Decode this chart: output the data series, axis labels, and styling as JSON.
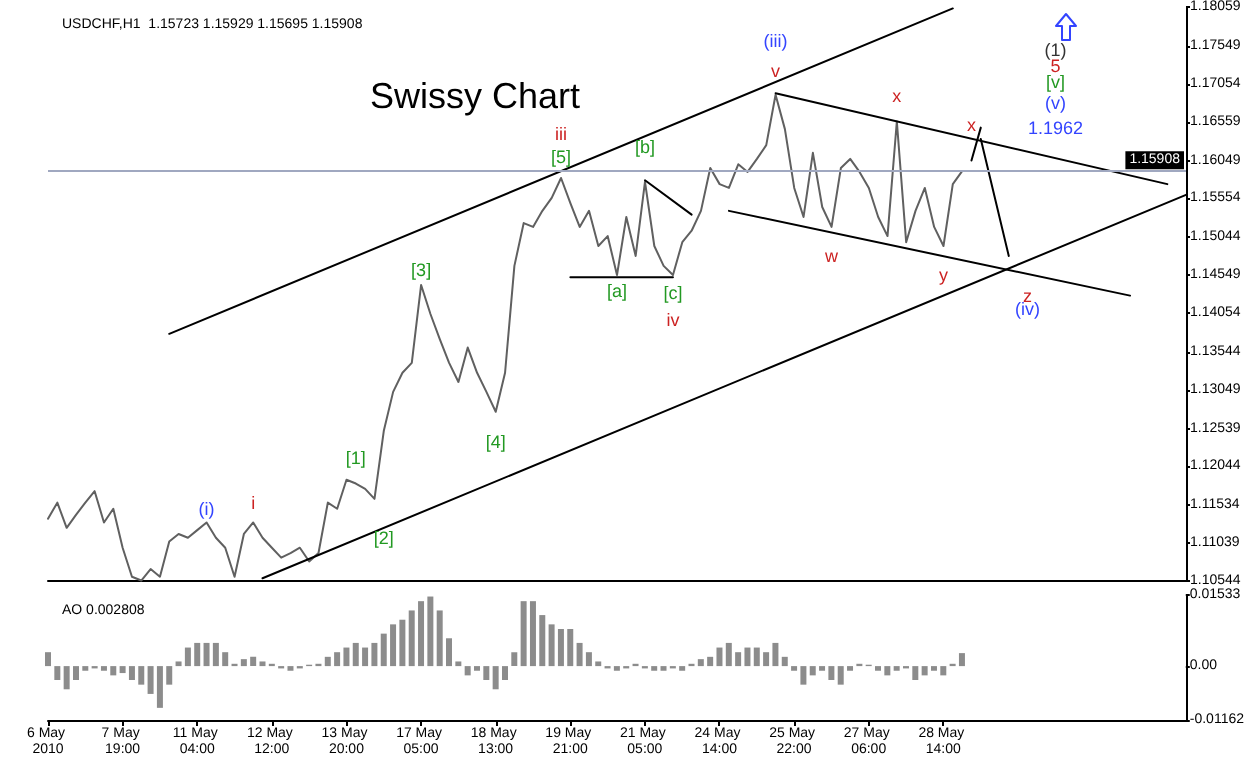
{
  "chart_data": [
    {
      "type": "line",
      "title": "Swissy Chart",
      "subtitle": "USDCHF,H1  1.15723 1.15929 1.15695 1.15908",
      "categories": [
        "6 May 2010",
        null,
        null,
        null,
        null,
        null,
        null,
        null,
        "7 May 19:00",
        null,
        null,
        null,
        null,
        null,
        null,
        null,
        "11 May 04:00",
        null,
        null,
        null,
        null,
        null,
        null,
        null,
        "12 May 12:00",
        null,
        null,
        null,
        null,
        null,
        null,
        null,
        "13 May 20:00",
        null,
        null,
        null,
        null,
        null,
        null,
        null,
        "17 May 05:00",
        null,
        null,
        null,
        null,
        null,
        null,
        null,
        "18 May 13:00",
        null,
        null,
        null,
        null,
        null,
        null,
        null,
        "19 May 21:00",
        null,
        null,
        null,
        null,
        null,
        null,
        null,
        "21 May 05:00",
        null,
        null,
        null,
        null,
        null,
        null,
        null,
        "24 May 14:00",
        null,
        null,
        null,
        null,
        null,
        null,
        null,
        "25 May 22:00",
        null,
        null,
        null,
        null,
        null,
        null,
        null,
        "27 May 06:00",
        null,
        null,
        null,
        null,
        null,
        null,
        null,
        "28 May 14:00",
        null,
        null,
        null,
        null,
        null,
        null,
        null,
        null,
        null,
        null,
        null,
        null,
        null,
        null,
        null,
        null,
        null,
        null,
        null,
        null,
        null,
        null,
        null,
        null,
        null,
        null
      ],
      "series": [
        {
          "color": "#606060",
          "values": [
            1.1136,
            1.1157,
            1.1124,
            1.1141,
            1.1157,
            1.1172,
            1.1131,
            1.1149,
            1.1098,
            1.106,
            1.1055,
            1.107,
            1.106,
            1.1106,
            1.1116,
            1.1111,
            1.1121,
            1.1131,
            1.1111,
            1.1098,
            1.106,
            1.1116,
            1.1131,
            1.1111,
            1.1098,
            1.1085,
            1.1091,
            1.1098,
            1.108,
            1.1091,
            1.1157,
            1.1149,
            1.1187,
            1.1182,
            1.1175,
            1.1162,
            1.1251,
            1.1302,
            1.1327,
            1.134,
            1.1442,
            1.1404,
            1.1371,
            1.134,
            1.1315,
            1.136,
            1.1327,
            1.1302,
            1.1276,
            1.1327,
            1.1467,
            1.1523,
            1.1518,
            1.1539,
            1.1556,
            1.1582,
            1.1549,
            1.1518,
            1.1539,
            1.1493,
            1.1506,
            1.1455,
            1.1531,
            1.148,
            1.1577,
            1.1493,
            1.1467,
            1.1455,
            1.1498,
            1.1513,
            1.1539,
            1.1595,
            1.1574,
            1.1569,
            1.16,
            1.159,
            1.1607,
            1.1625,
            1.1691,
            1.1646,
            1.1569,
            1.1531,
            1.1615,
            1.1544,
            1.1518,
            1.1595,
            1.1607,
            1.159,
            1.1569,
            1.1531,
            1.1506,
            1.1656,
            1.1498,
            1.1539,
            1.1569,
            1.1518,
            1.1493,
            1.1574,
            1.1591,
            null,
            null,
            null,
            null,
            null,
            null,
            null,
            null,
            null,
            null,
            null,
            null,
            null,
            null,
            null,
            null,
            null,
            null,
            null,
            null,
            null,
            null,
            null,
            null
          ]
        },
        {
          "color": "#000000",
          "values": [
            null,
            null,
            null,
            null,
            null,
            null,
            null,
            null,
            null,
            null,
            null,
            null,
            null,
            1.1378,
            null,
            null,
            null,
            null,
            null,
            null,
            null,
            null,
            null,
            null,
            null,
            null,
            null,
            null,
            null,
            null,
            null,
            null,
            null,
            null,
            null,
            null,
            null,
            null,
            null,
            null,
            null,
            null,
            null,
            null,
            null,
            null,
            null,
            null,
            null,
            null,
            null,
            null,
            null,
            null,
            null,
            null,
            null,
            null,
            null,
            null,
            null,
            null,
            null,
            null,
            null,
            null,
            null,
            null,
            null,
            null,
            null,
            null,
            null,
            null,
            null,
            null,
            null,
            null,
            null,
            null,
            null,
            null,
            null,
            null,
            null,
            null,
            null,
            null,
            null,
            null,
            null,
            null,
            null,
            null,
            null,
            null,
            null,
            1.1804,
            null,
            null,
            null,
            null,
            null,
            null,
            null,
            null,
            null,
            null,
            null,
            null,
            null,
            null,
            null,
            null,
            null,
            null,
            null,
            null,
            null,
            null,
            null,
            null,
            null
          ]
        },
        {
          "color": "#000000",
          "values": [
            null,
            null,
            null,
            null,
            null,
            null,
            null,
            null,
            null,
            null,
            null,
            null,
            null,
            null,
            null,
            null,
            null,
            null,
            null,
            null,
            null,
            null,
            null,
            1.1058,
            null,
            null,
            null,
            null,
            null,
            null,
            null,
            null,
            null,
            null,
            null,
            null,
            null,
            null,
            null,
            null,
            null,
            null,
            null,
            null,
            null,
            null,
            null,
            null,
            null,
            null,
            null,
            null,
            null,
            null,
            null,
            null,
            null,
            null,
            null,
            null,
            null,
            null,
            null,
            null,
            null,
            null,
            null,
            null,
            null,
            null,
            null,
            null,
            null,
            null,
            null,
            null,
            null,
            null,
            null,
            null,
            null,
            null,
            null,
            null,
            null,
            null,
            null,
            null,
            null,
            null,
            null,
            null,
            null,
            null,
            null,
            null,
            null,
            null,
            null,
            null,
            null,
            null,
            null,
            null,
            null,
            null,
            null,
            null,
            null,
            null,
            null,
            null,
            null,
            null,
            null,
            null,
            null,
            null,
            null,
            null,
            null,
            null,
            1.156
          ]
        },
        {
          "color": "#000000",
          "values": [
            null,
            null,
            null,
            null,
            null,
            null,
            null,
            null,
            null,
            null,
            null,
            null,
            null,
            null,
            null,
            null,
            null,
            null,
            null,
            null,
            null,
            null,
            null,
            null,
            null,
            null,
            null,
            null,
            null,
            null,
            null,
            null,
            null,
            null,
            null,
            null,
            null,
            null,
            null,
            null,
            null,
            null,
            null,
            null,
            null,
            null,
            null,
            null,
            null,
            null,
            null,
            null,
            null,
            null,
            null,
            null,
            null,
            null,
            null,
            null,
            null,
            null,
            null,
            null,
            null,
            null,
            null,
            null,
            null,
            null,
            null,
            null,
            null,
            null,
            null,
            null,
            null,
            null,
            1.1693,
            null,
            null,
            null,
            null,
            null,
            null,
            null,
            null,
            null,
            null,
            null,
            null,
            null,
            null,
            null,
            null,
            null,
            null,
            null,
            null,
            null,
            null,
            null,
            null,
            null,
            null,
            null,
            null,
            null,
            null,
            null,
            null,
            null,
            null,
            null,
            null,
            null,
            null,
            null,
            null,
            null,
            1.1574,
            null,
            null
          ]
        },
        {
          "color": "#000000",
          "values": [
            null,
            null,
            null,
            null,
            null,
            null,
            null,
            null,
            null,
            null,
            null,
            null,
            null,
            null,
            null,
            null,
            null,
            null,
            null,
            null,
            null,
            null,
            null,
            null,
            null,
            null,
            null,
            null,
            null,
            null,
            null,
            null,
            null,
            null,
            null,
            null,
            null,
            null,
            null,
            null,
            null,
            null,
            null,
            null,
            null,
            null,
            null,
            null,
            null,
            null,
            null,
            null,
            null,
            null,
            null,
            null,
            null,
            null,
            null,
            null,
            null,
            null,
            null,
            null,
            null,
            null,
            null,
            null,
            null,
            null,
            null,
            null,
            null,
            1.1539,
            null,
            null,
            null,
            null,
            null,
            null,
            null,
            null,
            null,
            null,
            null,
            null,
            null,
            null,
            null,
            null,
            null,
            null,
            null,
            null,
            null,
            null,
            null,
            null,
            null,
            null,
            null,
            null,
            null,
            null,
            null,
            null,
            null,
            null,
            null,
            null,
            null,
            null,
            null,
            null,
            null,
            null,
            1.1428,
            null,
            null,
            null,
            null,
            null,
            null
          ]
        },
        {
          "color": "#000000",
          "values": [
            null,
            null,
            null,
            null,
            null,
            null,
            null,
            null,
            null,
            null,
            null,
            null,
            null,
            null,
            null,
            null,
            null,
            null,
            null,
            null,
            null,
            null,
            null,
            null,
            null,
            null,
            null,
            null,
            null,
            null,
            null,
            null,
            null,
            null,
            null,
            null,
            null,
            null,
            null,
            null,
            null,
            null,
            null,
            null,
            null,
            null,
            null,
            null,
            null,
            null,
            null,
            null,
            null,
            null,
            null,
            null,
            1.1452,
            null,
            null,
            null,
            null,
            null,
            null,
            null,
            null,
            null,
            null,
            1.1452,
            null,
            null,
            null,
            null,
            null,
            null,
            null,
            null,
            null,
            null,
            null,
            null,
            null,
            null,
            null,
            null,
            null,
            null,
            null,
            null,
            null,
            null,
            null,
            null,
            null,
            null,
            null,
            null,
            null,
            null,
            null,
            null,
            null,
            null,
            null,
            null,
            null,
            null,
            null,
            null,
            null,
            null,
            null,
            null,
            null,
            null,
            null,
            null,
            null,
            null,
            null,
            null,
            null,
            null,
            null
          ]
        },
        {
          "color": "#000000",
          "values": [
            null,
            null,
            null,
            null,
            null,
            null,
            null,
            null,
            null,
            null,
            null,
            null,
            null,
            null,
            null,
            null,
            null,
            null,
            null,
            null,
            null,
            null,
            null,
            null,
            null,
            null,
            null,
            null,
            null,
            null,
            null,
            null,
            null,
            null,
            null,
            null,
            null,
            null,
            null,
            null,
            null,
            null,
            null,
            null,
            null,
            null,
            null,
            null,
            null,
            null,
            null,
            null,
            null,
            null,
            null,
            null,
            null,
            null,
            null,
            null,
            null,
            null,
            null,
            null,
            1.1579,
            null,
            null,
            null,
            null,
            1.1534,
            null,
            null,
            null,
            null,
            null,
            null,
            null,
            null,
            null,
            null,
            null,
            null,
            null,
            null,
            null,
            null,
            null,
            null,
            null,
            null,
            null,
            null,
            null,
            null,
            null,
            null,
            null,
            null,
            null,
            null,
            null,
            null,
            null,
            null,
            null,
            null,
            null,
            null,
            null,
            null,
            null,
            null,
            null,
            null,
            null,
            null,
            null,
            null,
            null,
            null,
            null,
            null,
            null
          ]
        },
        {
          "color": "#000000",
          "values": [
            null,
            null,
            null,
            null,
            null,
            null,
            null,
            null,
            null,
            null,
            null,
            null,
            null,
            null,
            null,
            null,
            null,
            null,
            null,
            null,
            null,
            null,
            null,
            null,
            null,
            null,
            null,
            null,
            null,
            null,
            null,
            null,
            null,
            null,
            null,
            null,
            null,
            null,
            null,
            null,
            null,
            null,
            null,
            null,
            null,
            null,
            null,
            null,
            null,
            null,
            null,
            null,
            null,
            null,
            null,
            null,
            null,
            null,
            null,
            null,
            null,
            null,
            null,
            null,
            null,
            null,
            null,
            null,
            null,
            null,
            null,
            null,
            null,
            null,
            null,
            null,
            null,
            null,
            null,
            null,
            null,
            null,
            null,
            null,
            null,
            null,
            null,
            null,
            null,
            null,
            null,
            null,
            null,
            null,
            null,
            null,
            null,
            null,
            null,
            1.1605,
            1.1648,
            null,
            null,
            null,
            null,
            null,
            null,
            null,
            null,
            null,
            null,
            null,
            null,
            null,
            null,
            null,
            null,
            null,
            null,
            null,
            null,
            null,
            null
          ]
        },
        {
          "color": "#000000",
          "values": [
            null,
            null,
            null,
            null,
            null,
            null,
            null,
            null,
            null,
            null,
            null,
            null,
            null,
            null,
            null,
            null,
            null,
            null,
            null,
            null,
            null,
            null,
            null,
            null,
            null,
            null,
            null,
            null,
            null,
            null,
            null,
            null,
            null,
            null,
            null,
            null,
            null,
            null,
            null,
            null,
            null,
            null,
            null,
            null,
            null,
            null,
            null,
            null,
            null,
            null,
            null,
            null,
            null,
            null,
            null,
            null,
            null,
            null,
            null,
            null,
            null,
            null,
            null,
            null,
            null,
            null,
            null,
            null,
            null,
            null,
            null,
            null,
            null,
            null,
            null,
            null,
            null,
            null,
            null,
            null,
            null,
            null,
            null,
            null,
            null,
            null,
            null,
            null,
            null,
            null,
            null,
            null,
            null,
            null,
            null,
            null,
            null,
            null,
            null,
            null,
            1.1633,
            null,
            null,
            1.148,
            null,
            null,
            null,
            null,
            null,
            null,
            null,
            null,
            null,
            null,
            null,
            null,
            null,
            null,
            null,
            null,
            null,
            null,
            null
          ]
        }
      ],
      "ylim": [
        1.10544,
        1.18059
      ],
      "yticks": [
        1.10544,
        1.11039,
        1.11534,
        1.12044,
        1.12539,
        1.13049,
        1.13544,
        1.14054,
        1.14549,
        1.15044,
        1.15554,
        1.16049,
        1.16559,
        1.17054,
        1.17549,
        1.18059
      ],
      "tick_labels": "y",
      "grid": false,
      "ref_lines": [
        {
          "axis": "y",
          "value": 1.15908,
          "label": "1.15908",
          "color": "#a0a8c0"
        }
      ],
      "annotations": [
        "(i)",
        "i",
        "[1]",
        "[2]",
        "[3]",
        "[4]",
        "[5]",
        "iii",
        "[a]",
        "[b]",
        "[c]",
        "iv",
        "v",
        "(iii)",
        "w",
        "x",
        "y",
        "x",
        "z",
        "(iv)",
        "(1)",
        "5",
        "[v]",
        "(v)",
        "1.1962"
      ]
    },
    {
      "type": "bar",
      "title": "AO 0.002808",
      "color": "#8c8c8c",
      "categories": [
        "6 May 2010",
        null,
        null,
        null,
        null,
        null,
        null,
        null,
        "7 May 19:00",
        null,
        null,
        null,
        null,
        null,
        null,
        null,
        "11 May 04:00",
        null,
        null,
        null,
        null,
        null,
        null,
        null,
        "12 May 12:00",
        null,
        null,
        null,
        null,
        null,
        null,
        null,
        "13 May 20:00",
        null,
        null,
        null,
        null,
        null,
        null,
        null,
        "17 May 05:00",
        null,
        null,
        null,
        null,
        null,
        null,
        null,
        "18 May 13:00",
        null,
        null,
        null,
        null,
        null,
        null,
        null,
        "19 May 21:00",
        null,
        null,
        null,
        null,
        null,
        null,
        null,
        "21 May 05:00",
        null,
        null,
        null,
        null,
        null,
        null,
        null,
        "24 May 14:00",
        null,
        null,
        null,
        null,
        null,
        null,
        null,
        "25 May 22:00",
        null,
        null,
        null,
        null,
        null,
        null,
        null,
        "27 May 06:00",
        null,
        null,
        null,
        null,
        null,
        null,
        null,
        "28 May 14:00",
        null,
        null,
        null,
        null,
        null,
        null,
        null,
        null,
        null,
        null,
        null,
        null,
        null,
        null,
        null,
        null,
        null,
        null,
        null,
        null,
        null,
        null,
        null,
        null,
        null,
        null
      ],
      "values": [
        0.003,
        -0.003,
        -0.005,
        -0.003,
        -0.001,
        -0.0005,
        -0.001,
        -0.002,
        -0.0015,
        -0.003,
        -0.004,
        -0.006,
        -0.009,
        -0.004,
        0.001,
        0.004,
        0.005,
        0.005,
        0.005,
        0.003,
        0.0005,
        0.0015,
        0.002,
        0.001,
        0.0005,
        -0.0005,
        -0.001,
        -0.0005,
        0.0003,
        0.0005,
        0.002,
        0.003,
        0.004,
        0.005,
        0.004,
        0.005,
        0.007,
        0.009,
        0.01,
        0.012,
        0.014,
        0.015,
        0.012,
        0.006,
        0.001,
        -0.002,
        -0.001,
        -0.003,
        -0.005,
        -0.003,
        0.003,
        0.014,
        0.014,
        0.011,
        0.009,
        0.008,
        0.008,
        0.005,
        0.003,
        0.001,
        -0.0005,
        -0.001,
        -0.0005,
        0.0005,
        -0.0005,
        -0.001,
        -0.001,
        -0.0005,
        -0.001,
        0.0005,
        0.0015,
        0.002,
        0.004,
        0.005,
        0.003,
        0.004,
        0.004,
        0.003,
        0.005,
        0.002,
        -0.001,
        -0.004,
        -0.002,
        -0.001,
        -0.003,
        -0.004,
        -0.001,
        0.0005,
        0.0003,
        -0.001,
        -0.002,
        -0.001,
        -0.0005,
        -0.003,
        -0.002,
        -0.001,
        -0.002,
        0.0005,
        0.0028,
        null,
        null,
        null,
        null,
        null,
        null,
        null,
        null,
        null,
        null,
        null,
        null,
        null,
        null,
        null,
        null,
        null,
        null,
        null,
        null,
        null,
        null,
        null,
        null
      ],
      "ylim": [
        -0.01162,
        0.01533
      ],
      "yticks": [
        -0.01162,
        {
          "value": 0,
          "label": "0.00"
        },
        0.01533
      ],
      "grid": false
    }
  ]
}
